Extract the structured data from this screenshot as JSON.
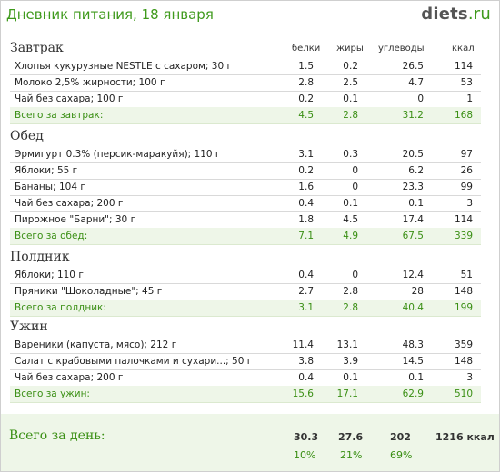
{
  "header": {
    "title": "Дневник питания, 18 января",
    "logo_brand": "diets",
    "logo_tld": ".ru"
  },
  "columns": [
    "белки",
    "жиры",
    "углеводы",
    "ккал"
  ],
  "meals": [
    {
      "name": "Завтрак",
      "items": [
        {
          "name": "Хлопья кукурузные NESTLE с сахаром; 30 г",
          "p": "1.5",
          "f": "0.2",
          "c": "26.5",
          "k": "114"
        },
        {
          "name": "Молоко 2,5% жирности; 100 г",
          "p": "2.8",
          "f": "2.5",
          "c": "4.7",
          "k": "53"
        },
        {
          "name": "Чай без сахара; 100 г",
          "p": "0.2",
          "f": "0.1",
          "c": "0",
          "k": "1"
        }
      ],
      "total": {
        "name": "Всего за завтрак:",
        "p": "4.5",
        "f": "2.8",
        "c": "31.2",
        "k": "168"
      }
    },
    {
      "name": "Обед",
      "items": [
        {
          "name": "Эрмигурт 0.3% (персик-маракуйя); 110 г",
          "p": "3.1",
          "f": "0.3",
          "c": "20.5",
          "k": "97"
        },
        {
          "name": "Яблоки; 55 г",
          "p": "0.2",
          "f": "0",
          "c": "6.2",
          "k": "26"
        },
        {
          "name": "Бананы; 104 г",
          "p": "1.6",
          "f": "0",
          "c": "23.3",
          "k": "99"
        },
        {
          "name": "Чай без сахара; 200 г",
          "p": "0.4",
          "f": "0.1",
          "c": "0.1",
          "k": "3"
        },
        {
          "name": "Пирожное \"Барни\"; 30 г",
          "p": "1.8",
          "f": "4.5",
          "c": "17.4",
          "k": "114"
        }
      ],
      "total": {
        "name": "Всего за обед:",
        "p": "7.1",
        "f": "4.9",
        "c": "67.5",
        "k": "339"
      }
    },
    {
      "name": "Полдник",
      "items": [
        {
          "name": "Яблоки; 110 г",
          "p": "0.4",
          "f": "0",
          "c": "12.4",
          "k": "51"
        },
        {
          "name": "Пряники \"Шоколадные\"; 45 г",
          "p": "2.7",
          "f": "2.8",
          "c": "28",
          "k": "148"
        }
      ],
      "total": {
        "name": "Всего за полдник:",
        "p": "3.1",
        "f": "2.8",
        "c": "40.4",
        "k": "199"
      }
    },
    {
      "name": "Ужин",
      "items": [
        {
          "name": "Вареники (капуста, мясо); 212 г",
          "p": "11.4",
          "f": "13.1",
          "c": "48.3",
          "k": "359"
        },
        {
          "name": "Салат с крабовыми палочками и сухари...; 50 г",
          "p": "3.8",
          "f": "3.9",
          "c": "14.5",
          "k": "148"
        },
        {
          "name": "Чай без сахара; 200 г",
          "p": "0.4",
          "f": "0.1",
          "c": "0.1",
          "k": "3"
        }
      ],
      "total": {
        "name": "Всего за ужин:",
        "p": "15.6",
        "f": "17.1",
        "c": "62.9",
        "k": "510"
      }
    }
  ],
  "day_total": {
    "label": "Всего за день:",
    "p": "30.3",
    "f": "27.6",
    "c": "202",
    "k": "1216 ккал",
    "p_pct": "10%",
    "f_pct": "21%",
    "c_pct": "69%"
  }
}
